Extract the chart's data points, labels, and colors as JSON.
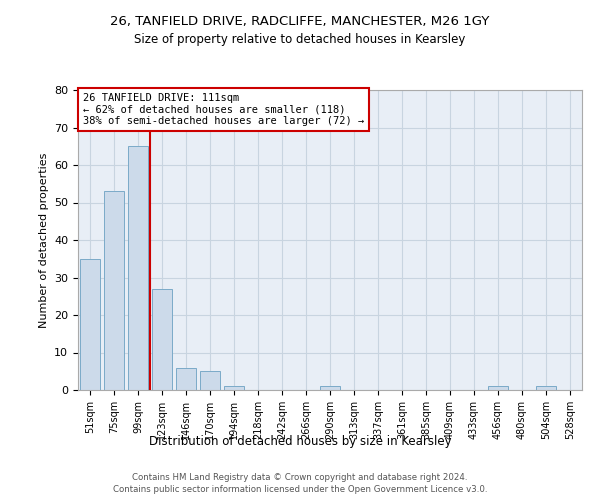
{
  "title1": "26, TANFIELD DRIVE, RADCLIFFE, MANCHESTER, M26 1GY",
  "title2": "Size of property relative to detached houses in Kearsley",
  "xlabel": "Distribution of detached houses by size in Kearsley",
  "ylabel": "Number of detached properties",
  "bin_labels": [
    "51sqm",
    "75sqm",
    "99sqm",
    "123sqm",
    "146sqm",
    "170sqm",
    "194sqm",
    "218sqm",
    "242sqm",
    "266sqm",
    "290sqm",
    "313sqm",
    "337sqm",
    "361sqm",
    "385sqm",
    "409sqm",
    "433sqm",
    "456sqm",
    "480sqm",
    "504sqm",
    "528sqm"
  ],
  "bar_heights": [
    35,
    53,
    65,
    27,
    6,
    5,
    1,
    0,
    0,
    0,
    1,
    0,
    0,
    0,
    0,
    0,
    0,
    1,
    0,
    1,
    0
  ],
  "bar_color": "#ccdaea",
  "bar_edge_color": "#7baac8",
  "grid_color": "#c8d4e0",
  "background_color": "#e8eef6",
  "property_line_x": 2.5,
  "annotation_text": "26 TANFIELD DRIVE: 111sqm\n← 62% of detached houses are smaller (118)\n38% of semi-detached houses are larger (72) →",
  "annotation_box_color": "#ffffff",
  "annotation_box_edge_color": "#cc0000",
  "property_line_color": "#cc0000",
  "ylim": [
    0,
    80
  ],
  "yticks": [
    0,
    10,
    20,
    30,
    40,
    50,
    60,
    70,
    80
  ],
  "footer1": "Contains HM Land Registry data © Crown copyright and database right 2024.",
  "footer2": "Contains public sector information licensed under the Open Government Licence v3.0."
}
